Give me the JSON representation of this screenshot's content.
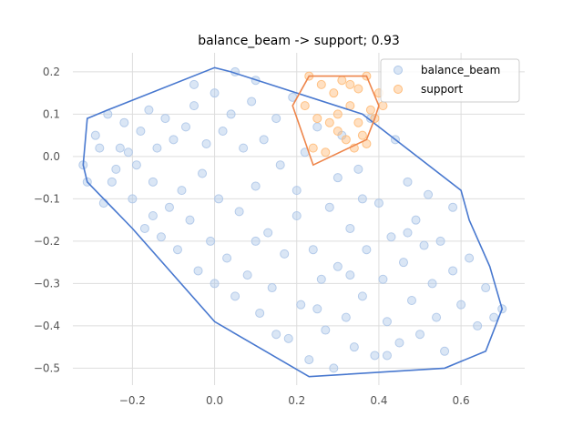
{
  "chart_data": {
    "type": "scatter",
    "title": "balance_beam -> support; 0.93",
    "xlabel": "",
    "ylabel": "",
    "xlim": [
      -0.345,
      0.755
    ],
    "ylim": [
      -0.54,
      0.245
    ],
    "xticks": [
      -0.2,
      0.0,
      0.2,
      0.4,
      0.6
    ],
    "yticks": [
      0.2,
      0.1,
      0.0,
      -0.1,
      -0.2,
      -0.3,
      -0.4,
      -0.5
    ],
    "xtick_labels": [
      "−0.2",
      "0.0",
      "0.2",
      "0.4",
      "0.6"
    ],
    "ytick_labels": [
      "0.2",
      "0.1",
      "0.0",
      "−0.1",
      "−0.2",
      "−0.3",
      "−0.4",
      "−0.5"
    ],
    "grid": true,
    "legend_position": "top-right",
    "series": [
      {
        "name": "balance_beam",
        "color": "#aec7e8",
        "hull_color": "#4878cf",
        "points": [
          [
            -0.32,
            -0.02
          ],
          [
            -0.31,
            -0.06
          ],
          [
            -0.29,
            0.05
          ],
          [
            -0.28,
            0.02
          ],
          [
            -0.27,
            -0.11
          ],
          [
            -0.26,
            0.1
          ],
          [
            -0.25,
            -0.06
          ],
          [
            -0.24,
            -0.03
          ],
          [
            -0.23,
            0.02
          ],
          [
            -0.22,
            0.08
          ],
          [
            -0.21,
            0.01
          ],
          [
            -0.2,
            -0.1
          ],
          [
            -0.19,
            -0.02
          ],
          [
            -0.18,
            0.06
          ],
          [
            -0.17,
            -0.17
          ],
          [
            -0.16,
            0.11
          ],
          [
            -0.15,
            -0.06
          ],
          [
            -0.14,
            0.02
          ],
          [
            -0.13,
            -0.19
          ],
          [
            -0.12,
            0.09
          ],
          [
            -0.11,
            -0.12
          ],
          [
            -0.1,
            0.04
          ],
          [
            -0.09,
            -0.22
          ],
          [
            -0.08,
            -0.08
          ],
          [
            -0.07,
            0.07
          ],
          [
            -0.06,
            -0.15
          ],
          [
            -0.05,
            0.12
          ],
          [
            -0.04,
            -0.27
          ],
          [
            -0.03,
            -0.04
          ],
          [
            -0.02,
            0.03
          ],
          [
            -0.01,
            -0.2
          ],
          [
            0.0,
            0.15
          ],
          [
            0.01,
            -0.1
          ],
          [
            0.02,
            0.06
          ],
          [
            0.03,
            -0.24
          ],
          [
            0.04,
            0.1
          ],
          [
            0.05,
            -0.33
          ],
          [
            0.06,
            -0.13
          ],
          [
            0.07,
            0.02
          ],
          [
            0.08,
            -0.28
          ],
          [
            0.09,
            0.13
          ],
          [
            0.1,
            -0.07
          ],
          [
            0.11,
            -0.37
          ],
          [
            0.12,
            0.04
          ],
          [
            0.13,
            -0.18
          ],
          [
            0.14,
            -0.31
          ],
          [
            0.15,
            0.09
          ],
          [
            0.16,
            -0.02
          ],
          [
            0.17,
            -0.23
          ],
          [
            0.18,
            -0.43
          ],
          [
            0.19,
            0.14
          ],
          [
            0.2,
            -0.14
          ],
          [
            0.21,
            -0.35
          ],
          [
            0.22,
            0.01
          ],
          [
            0.23,
            -0.48
          ],
          [
            0.24,
            -0.22
          ],
          [
            0.25,
            0.07
          ],
          [
            0.26,
            -0.29
          ],
          [
            0.27,
            -0.41
          ],
          [
            0.28,
            -0.12
          ],
          [
            0.29,
            -0.5
          ],
          [
            0.3,
            -0.26
          ],
          [
            0.31,
            0.05
          ],
          [
            0.32,
            -0.38
          ],
          [
            0.33,
            -0.17
          ],
          [
            0.34,
            -0.45
          ],
          [
            0.35,
            -0.03
          ],
          [
            0.36,
            -0.33
          ],
          [
            0.37,
            -0.22
          ],
          [
            0.38,
            0.09
          ],
          [
            0.39,
            -0.47
          ],
          [
            0.4,
            -0.11
          ],
          [
            0.41,
            -0.29
          ],
          [
            0.42,
            -0.39
          ],
          [
            0.43,
            -0.19
          ],
          [
            0.44,
            0.04
          ],
          [
            0.45,
            -0.44
          ],
          [
            0.46,
            -0.25
          ],
          [
            0.47,
            -0.06
          ],
          [
            0.48,
            -0.34
          ],
          [
            0.49,
            -0.15
          ],
          [
            0.5,
            -0.42
          ],
          [
            0.51,
            -0.21
          ],
          [
            0.52,
            -0.09
          ],
          [
            0.53,
            -0.3
          ],
          [
            0.54,
            -0.38
          ],
          [
            0.55,
            -0.2
          ],
          [
            0.56,
            -0.46
          ],
          [
            0.58,
            -0.27
          ],
          [
            0.6,
            -0.35
          ],
          [
            0.62,
            -0.24
          ],
          [
            0.64,
            -0.4
          ],
          [
            0.66,
            -0.31
          ],
          [
            0.68,
            -0.38
          ],
          [
            0.7,
            -0.36
          ],
          [
            0.1,
            0.18
          ],
          [
            0.05,
            0.2
          ],
          [
            -0.05,
            0.17
          ],
          [
            0.2,
            -0.08
          ],
          [
            0.3,
            -0.05
          ],
          [
            0.15,
            -0.42
          ],
          [
            0.42,
            -0.47
          ],
          [
            0.36,
            -0.1
          ],
          [
            0.25,
            -0.36
          ],
          [
            0.58,
            -0.12
          ],
          [
            0.47,
            -0.18
          ],
          [
            0.33,
            -0.28
          ],
          [
            0.1,
            -0.2
          ],
          [
            -0.15,
            -0.14
          ],
          [
            0.0,
            -0.3
          ]
        ]
      },
      {
        "name": "support",
        "color": "#ffbb78",
        "hull_color": "#ee854a",
        "points": [
          [
            0.23,
            0.19
          ],
          [
            0.26,
            0.17
          ],
          [
            0.29,
            0.15
          ],
          [
            0.31,
            0.18
          ],
          [
            0.33,
            0.12
          ],
          [
            0.35,
            0.16
          ],
          [
            0.37,
            0.19
          ],
          [
            0.38,
            0.11
          ],
          [
            0.22,
            0.12
          ],
          [
            0.25,
            0.09
          ],
          [
            0.28,
            0.08
          ],
          [
            0.3,
            0.06
          ],
          [
            0.32,
            0.04
          ],
          [
            0.34,
            0.02
          ],
          [
            0.36,
            0.05
          ],
          [
            0.39,
            0.09
          ],
          [
            0.41,
            0.12
          ],
          [
            0.24,
            0.02
          ],
          [
            0.27,
            0.01
          ],
          [
            0.3,
            0.1
          ],
          [
            0.33,
            0.17
          ],
          [
            0.35,
            0.08
          ],
          [
            0.37,
            0.03
          ],
          [
            0.4,
            0.15
          ]
        ]
      }
    ],
    "hulls": [
      {
        "series": "balance_beam",
        "vertices": [
          [
            -0.32,
            -0.02
          ],
          [
            -0.31,
            0.09
          ],
          [
            -0.26,
            0.11
          ],
          [
            0.0,
            0.21
          ],
          [
            0.04,
            0.2
          ],
          [
            0.36,
            0.1
          ],
          [
            0.6,
            -0.08
          ],
          [
            0.62,
            -0.15
          ],
          [
            0.67,
            -0.26
          ],
          [
            0.7,
            -0.36
          ],
          [
            0.66,
            -0.46
          ],
          [
            0.56,
            -0.5
          ],
          [
            0.23,
            -0.52
          ],
          [
            0.0,
            -0.39
          ],
          [
            -0.2,
            -0.17
          ],
          [
            -0.31,
            -0.06
          ]
        ]
      },
      {
        "series": "support",
        "vertices": [
          [
            0.23,
            0.19
          ],
          [
            0.37,
            0.19
          ],
          [
            0.4,
            0.12
          ],
          [
            0.39,
            0.09
          ],
          [
            0.37,
            0.04
          ],
          [
            0.24,
            -0.02
          ],
          [
            0.19,
            0.12
          ]
        ]
      }
    ],
    "legend": [
      "balance_beam",
      "support"
    ]
  }
}
